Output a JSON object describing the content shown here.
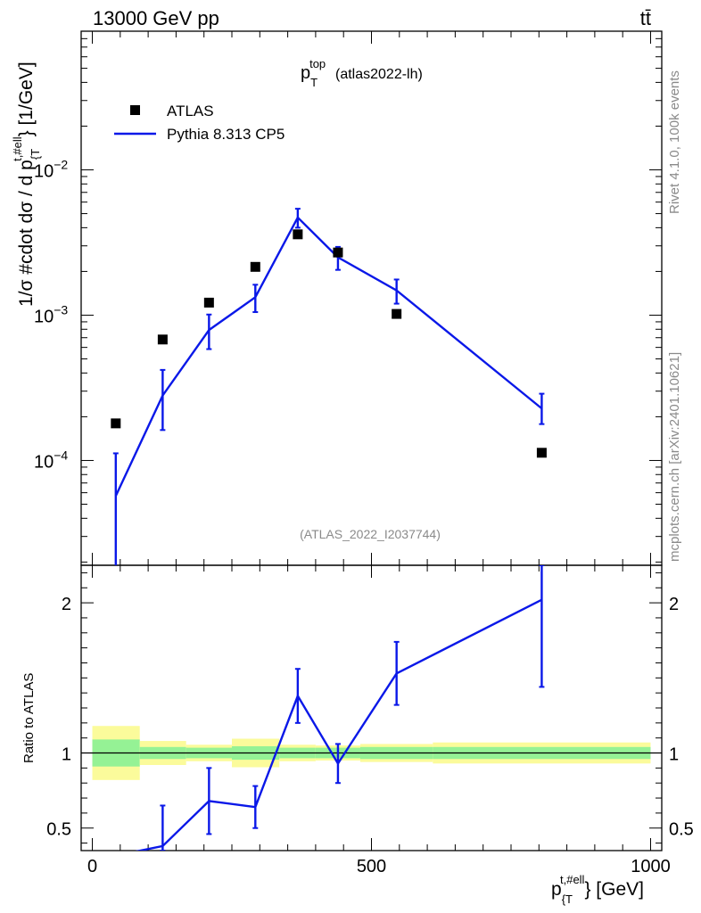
{
  "header": {
    "energy_label": "13000 GeV pp",
    "process_label": "tt̄"
  },
  "side_labels": {
    "rivet": "Rivet 4.1.0,  100k events",
    "mcplots": "mcplots.cern.ch [arXiv:2401.10621]"
  },
  "chart_data": {
    "type": "line",
    "title_main": "p",
    "title_sup": "top",
    "title_sub": "T",
    "title_tag": "(atlas2022-lh)",
    "watermark": "(ATLAS_2022_I2037744)",
    "xlabel_main": "p",
    "xlabel_sup": "t,#ell",
    "xlabel_sub": "{T",
    "xlabel_rest": "} [GeV]",
    "ylabel": "1/σ #cdot dσ / d p",
    "ylabel_sup": "t,#ell",
    "ylabel_sub": "{T",
    "ylabel_rest": "} [1/GeV]",
    "ratio_ylabel": "Ratio to ATLAS",
    "xlim": [
      -20,
      1020
    ],
    "ylim_log": [
      1.9e-05,
      0.09
    ],
    "ratio_ylim": [
      0.35,
      2.25
    ],
    "x_ticks": [
      0,
      500,
      1000
    ],
    "y_ticks_log": [
      {
        "value": 0.0001,
        "base": "10",
        "exp": "−4"
      },
      {
        "value": 0.001,
        "base": "10",
        "exp": "−3"
      },
      {
        "value": 0.01,
        "base": "10",
        "exp": "−2"
      }
    ],
    "ratio_ticks": [
      {
        "value": 0.5,
        "label": "0.5"
      },
      {
        "value": 1,
        "label": "1"
      },
      {
        "value": 2,
        "label": "2"
      }
    ],
    "legend": [
      {
        "name": "ATLAS",
        "marker": "square",
        "color": "#000000"
      },
      {
        "name": "Pythia 8.313 CP5",
        "marker": "line",
        "color": "#0a18e8"
      }
    ],
    "bin_edges": [
      0,
      85,
      168,
      250,
      335,
      400,
      480,
      610,
      1000
    ],
    "atlas": {
      "x": [
        42,
        126,
        209,
        292,
        368,
        440,
        545,
        805
      ],
      "y": [
        0.00018,
        0.00068,
        0.00122,
        0.00215,
        0.0036,
        0.0027,
        0.00102,
        0.000113
      ]
    },
    "pythia": {
      "x": [
        42,
        126,
        209,
        292,
        368,
        440,
        545,
        805
      ],
      "y": [
        5.7e-05,
        0.00028,
        0.00079,
        0.00133,
        0.0047,
        0.0025,
        0.00148,
        0.000228
      ],
      "err_lo": [
        5.7e-05,
        0.000118,
        0.000206,
        0.00028,
        0.0007,
        0.00045,
        0.00028,
        5e-05
      ],
      "err_hi": [
        5.5e-05,
        0.00014,
        0.00022,
        0.00029,
        0.0007,
        0.00045,
        0.00028,
        6e-05
      ]
    },
    "ratio": {
      "x": [
        126,
        209,
        292,
        368,
        440,
        545,
        805
      ],
      "y": [
        0.38,
        0.68,
        0.64,
        1.38,
        0.93,
        1.53,
        2.02
      ],
      "err": [
        0.27,
        0.22,
        0.14,
        0.18,
        0.13,
        0.21,
        0.58
      ]
    },
    "band_green": [
      0.09,
      0.04,
      0.035,
      0.045,
      0.035,
      0.035,
      0.04,
      0.04
    ],
    "band_yellow": [
      0.18,
      0.08,
      0.055,
      0.095,
      0.055,
      0.05,
      0.06,
      0.07
    ]
  }
}
